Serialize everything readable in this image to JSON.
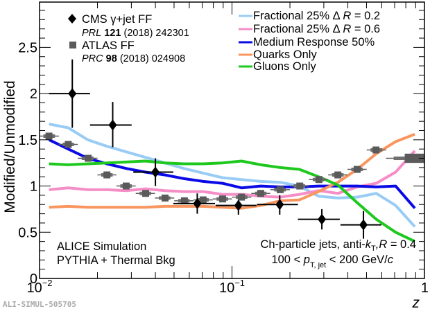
{
  "chart_data": {
    "type": "line",
    "title": "",
    "xlabel": "z",
    "ylabel": "Modified/Unmodified",
    "xscale": "log",
    "xlim": [
      0.01,
      1
    ],
    "ylim": [
      0,
      2.99
    ],
    "x_tick_labels": [
      {
        "value": 0.01,
        "base": "10",
        "exp": "−2"
      },
      {
        "value": 0.1,
        "base": "10",
        "exp": "−1"
      },
      {
        "value": 1,
        "base": "1",
        "exp": ""
      }
    ],
    "y_ticks": [
      0,
      0.5,
      1,
      1.5,
      2,
      2.5
    ],
    "y_tick_labels": [
      "0",
      "0.5",
      "1",
      "1.5",
      "2",
      "2.5"
    ],
    "grid": false,
    "legend_left": {
      "placement": "top-left",
      "entries": [
        {
          "marker": "diamond",
          "label": "CMS γ+jet FF",
          "ref_journal": "PRL",
          "ref_volume": "121",
          "ref_rest": "(2018) 242301",
          "color": "#000000"
        },
        {
          "marker": "square",
          "label": "ATLAS FF",
          "ref_journal": "PRC",
          "ref_volume": "98",
          "ref_rest": "(2018) 024908",
          "color": "#5a5a5a"
        }
      ]
    },
    "legend_right": {
      "placement": "top-right",
      "entries": [
        {
          "label_pre": "Fractional 25% Δ ",
          "label_var": "R",
          "label_post": " = 0.2",
          "color": "#99ccf5"
        },
        {
          "label_pre": "Fractional 25% Δ ",
          "label_var": "R",
          "label_post": " = 0.6",
          "color": "#f58ec6"
        },
        {
          "label_pre": "Medium Response 50%",
          "label_var": "",
          "label_post": "",
          "color": "#0a0ae6"
        },
        {
          "label_pre": "Quarks Only",
          "label_var": "",
          "label_post": "",
          "color": "#f99660"
        },
        {
          "label_pre": "Gluons Only",
          "label_var": "",
          "label_post": "",
          "color": "#1ec81e"
        }
      ]
    },
    "x": [
      0.0112,
      0.0141,
      0.0178,
      0.0224,
      0.0282,
      0.0355,
      0.0447,
      0.0562,
      0.0708,
      0.0891,
      0.112,
      0.141,
      0.178,
      0.224,
      0.282,
      0.355,
      0.447,
      0.562,
      0.708,
      0.891
    ],
    "series": [
      {
        "name": "Fractional 25% Δ R = 0.2",
        "color": "#99ccf5",
        "values": [
          1.67,
          1.63,
          1.5,
          1.43,
          1.37,
          1.31,
          1.25,
          1.19,
          1.14,
          1.09,
          1.07,
          1.05,
          1.04,
          1.0,
          0.89,
          0.87,
          0.88,
          0.92,
          0.79,
          0.56
        ]
      },
      {
        "name": "Fractional 25% Δ R = 0.6",
        "color": "#f58ec6",
        "values": [
          0.96,
          0.98,
          0.96,
          0.96,
          0.95,
          0.97,
          0.95,
          0.94,
          0.94,
          0.91,
          0.91,
          0.89,
          0.88,
          0.91,
          0.95,
          0.92,
          0.99,
          1.03,
          1.15,
          1.38
        ]
      },
      {
        "name": "Medium Response 50%",
        "color": "#0a0ae6",
        "values": [
          1.5,
          1.4,
          1.3,
          1.24,
          1.19,
          1.15,
          1.12,
          1.08,
          1.05,
          1.03,
          0.98,
          1.0,
          0.99,
          0.99,
          1.0,
          1.0,
          1.0,
          0.99,
          1.0,
          0.76
        ]
      },
      {
        "name": "Quarks Only",
        "color": "#f99660",
        "values": [
          0.77,
          0.78,
          0.77,
          0.77,
          0.77,
          0.77,
          0.78,
          0.78,
          0.78,
          0.77,
          0.76,
          0.79,
          0.84,
          0.85,
          0.94,
          1.04,
          1.18,
          1.35,
          1.48,
          1.56
        ]
      },
      {
        "name": "Gluons Only",
        "color": "#1ec81e",
        "values": [
          1.24,
          1.23,
          1.24,
          1.25,
          1.26,
          1.27,
          1.25,
          1.24,
          1.24,
          1.25,
          1.27,
          1.23,
          1.2,
          1.18,
          1.1,
          1.01,
          0.82,
          0.64,
          0.5,
          0.4
        ]
      }
    ],
    "cms_points": [
      {
        "z": 0.0148,
        "zlo": 0.0112,
        "zhi": 0.0183,
        "y": 2.0,
        "ylo": 1.63,
        "yhi": 2.37
      },
      {
        "z": 0.024,
        "zlo": 0.0183,
        "zhi": 0.0301,
        "y": 1.66,
        "ylo": 1.42,
        "yhi": 1.91
      },
      {
        "z": 0.04,
        "zlo": 0.0307,
        "zhi": 0.0496,
        "y": 1.15,
        "ylo": 1.0,
        "yhi": 1.3
      },
      {
        "z": 0.066,
        "zlo": 0.0496,
        "zhi": 0.0816,
        "y": 0.81,
        "ylo": 0.7,
        "yhi": 0.92
      },
      {
        "z": 0.108,
        "zlo": 0.0822,
        "zhi": 0.134,
        "y": 0.79,
        "ylo": 0.69,
        "yhi": 0.85
      },
      {
        "z": 0.177,
        "zlo": 0.135,
        "zhi": 0.22,
        "y": 0.8,
        "ylo": 0.69,
        "yhi": 0.9
      },
      {
        "z": 0.293,
        "zlo": 0.22,
        "zhi": 0.363,
        "y": 0.64,
        "ylo": 0.53,
        "yhi": 0.75
      },
      {
        "z": 0.482,
        "zlo": 0.366,
        "zhi": 0.597,
        "y": 0.58,
        "ylo": 0.43,
        "yhi": 0.73
      }
    ],
    "atlas_points": [
      {
        "z": 0.0112,
        "zlo": 0.01,
        "zhi": 0.0126,
        "y": 1.54,
        "sys": 0.03
      },
      {
        "z": 0.0141,
        "zlo": 0.0126,
        "zhi": 0.0158,
        "y": 1.45,
        "sys": 0.03
      },
      {
        "z": 0.0179,
        "zlo": 0.0158,
        "zhi": 0.02,
        "y": 1.3,
        "sys": 0.03
      },
      {
        "z": 0.0224,
        "zlo": 0.02,
        "zhi": 0.0251,
        "y": 1.12,
        "sys": 0.03
      },
      {
        "z": 0.0282,
        "zlo": 0.0251,
        "zhi": 0.0316,
        "y": 1.0,
        "sys": 0.03
      },
      {
        "z": 0.0356,
        "zlo": 0.0316,
        "zhi": 0.0398,
        "y": 0.92,
        "sys": 0.03
      },
      {
        "z": 0.0449,
        "zlo": 0.0398,
        "zhi": 0.0501,
        "y": 0.87,
        "sys": 0.03
      },
      {
        "z": 0.0566,
        "zlo": 0.0501,
        "zhi": 0.0631,
        "y": 0.84,
        "sys": 0.03
      },
      {
        "z": 0.0708,
        "zlo": 0.0631,
        "zhi": 0.0794,
        "y": 0.85,
        "sys": 0.03
      },
      {
        "z": 0.0894,
        "zlo": 0.0794,
        "zhi": 0.1,
        "y": 0.86,
        "sys": 0.03
      },
      {
        "z": 0.112,
        "zlo": 0.1,
        "zhi": 0.126,
        "y": 0.88,
        "sys": 0.03
      },
      {
        "z": 0.141,
        "zlo": 0.126,
        "zhi": 0.158,
        "y": 0.92,
        "sys": 0.03
      },
      {
        "z": 0.178,
        "zlo": 0.158,
        "zhi": 0.2,
        "y": 0.96,
        "sys": 0.03
      },
      {
        "z": 0.225,
        "zlo": 0.2,
        "zhi": 0.251,
        "y": 1.0,
        "sys": 0.03
      },
      {
        "z": 0.283,
        "zlo": 0.251,
        "zhi": 0.316,
        "y": 1.07,
        "sys": 0.03
      },
      {
        "z": 0.355,
        "zlo": 0.316,
        "zhi": 0.398,
        "y": 1.12,
        "sys": 0.03
      },
      {
        "z": 0.447,
        "zlo": 0.398,
        "zhi": 0.501,
        "y": 1.18,
        "sys": 0.03
      },
      {
        "z": 0.56,
        "zlo": 0.501,
        "zhi": 0.631,
        "y": 1.39,
        "sys": 0.03
      },
      {
        "z": 0.83,
        "zlo": 0.631,
        "zhi": 1.0,
        "y": 1.3,
        "sys": 0.05
      }
    ],
    "annotations": {
      "experiment": "ALICE Simulation",
      "generator": "PYTHIA + Thermal Bkg",
      "jets_pre": "Ch-particle jets, anti-",
      "jets_k": "k",
      "jets_ksub": "T",
      "jets_R": ",R",
      "jets_post": " = 0.4",
      "pt_pre": "100 < ",
      "pt_p": "p",
      "pt_sub": "T, jet",
      "pt_post": " < 200 GeV/",
      "pt_c": "c"
    },
    "watermark": "ALI-SIMUL-505705"
  }
}
